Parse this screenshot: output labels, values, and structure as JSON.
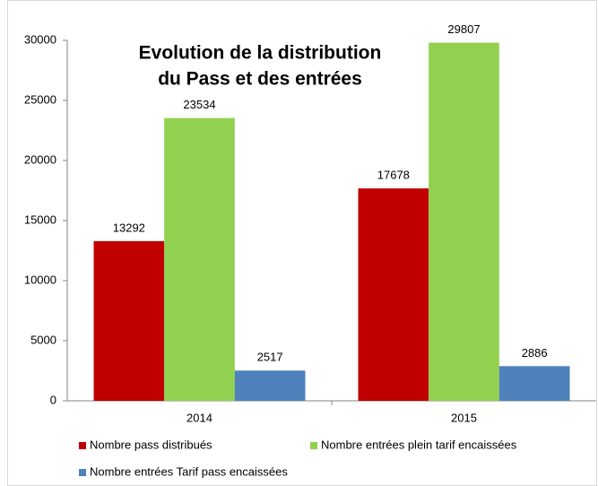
{
  "chart_data": {
    "type": "bar",
    "title": [
      "Evolution de la distribution",
      "du Pass et  des entrées"
    ],
    "categories": [
      "2014",
      "2015"
    ],
    "series": [
      {
        "name": "Nombre pass distribués",
        "color": "#c00000",
        "values": [
          13292,
          17678
        ]
      },
      {
        "name": "Nombre entrées plein tarif encaissées",
        "color": "#92d050",
        "values": [
          23534,
          29807
        ]
      },
      {
        "name": "Nombre entrées Tarif pass encaissées",
        "color": "#4f81bd",
        "values": [
          2517,
          2886
        ]
      }
    ],
    "ylim": [
      0,
      30000
    ],
    "yticks": [
      0,
      5000,
      10000,
      15000,
      20000,
      25000,
      30000
    ],
    "grid": false,
    "legend": "bottom"
  }
}
